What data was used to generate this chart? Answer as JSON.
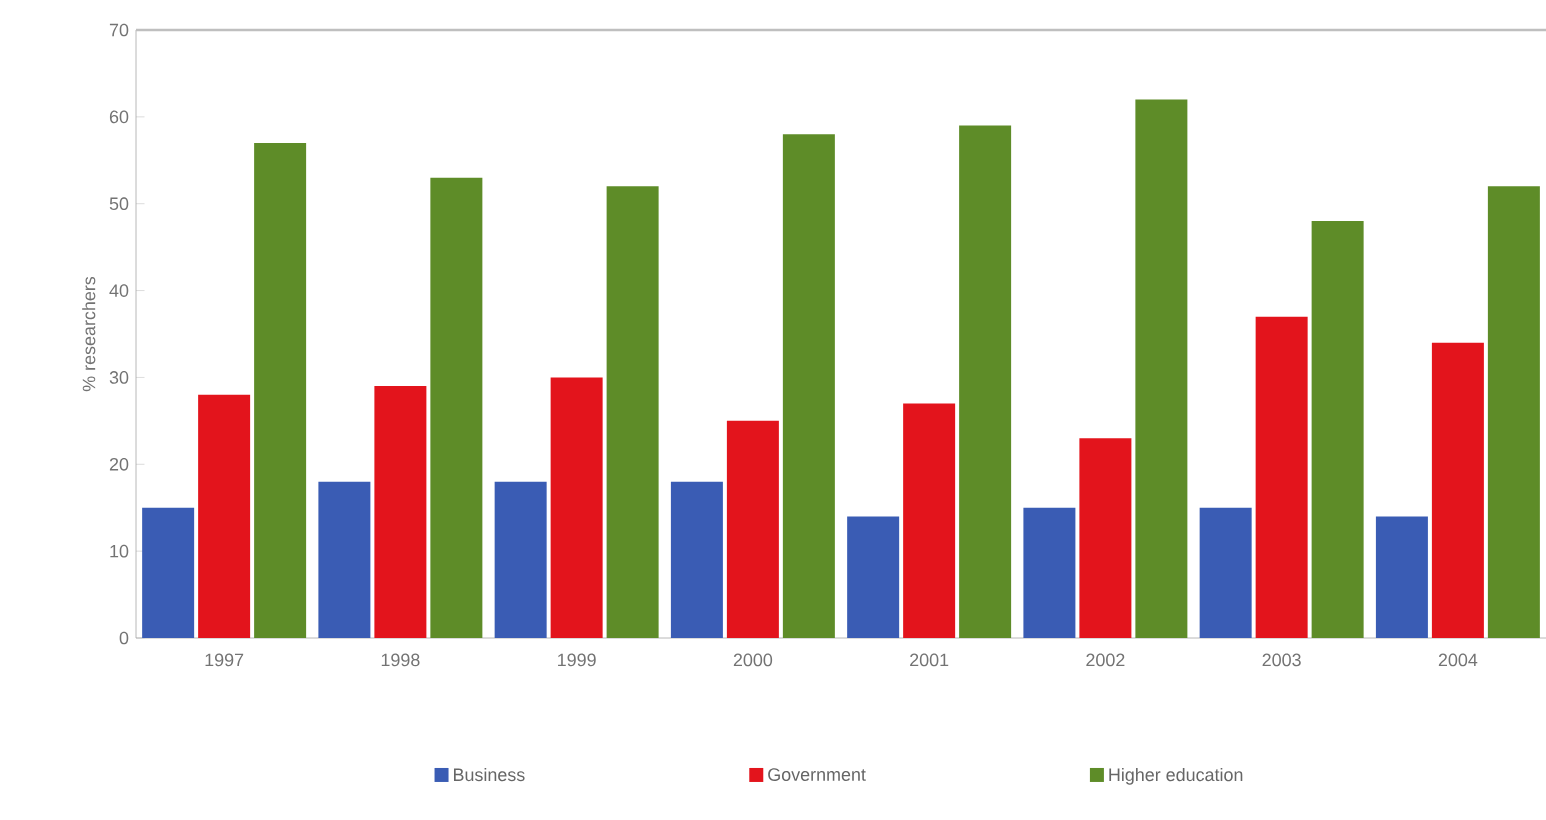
{
  "chart_data": {
    "type": "bar",
    "ylabel": "% researchers",
    "categories": [
      "1997",
      "1998",
      "1999",
      "2000",
      "2001",
      "2002",
      "2003",
      "2004"
    ],
    "series": [
      {
        "name": "Business",
        "color": "#3a5cb4",
        "values": [
          15,
          18,
          18,
          18,
          14,
          15,
          15,
          14
        ]
      },
      {
        "name": "Government",
        "color": "#e3141c",
        "values": [
          28,
          29,
          30,
          25,
          27,
          23,
          37,
          34
        ]
      },
      {
        "name": "Higher education",
        "color": "#5e8c28",
        "values": [
          57,
          53,
          52,
          58,
          59,
          62,
          48,
          52
        ]
      }
    ],
    "ylim": [
      0,
      70
    ],
    "yticks": [
      0,
      10,
      20,
      30,
      40,
      50,
      60,
      70
    ],
    "grid": false,
    "legend": "bottom"
  }
}
